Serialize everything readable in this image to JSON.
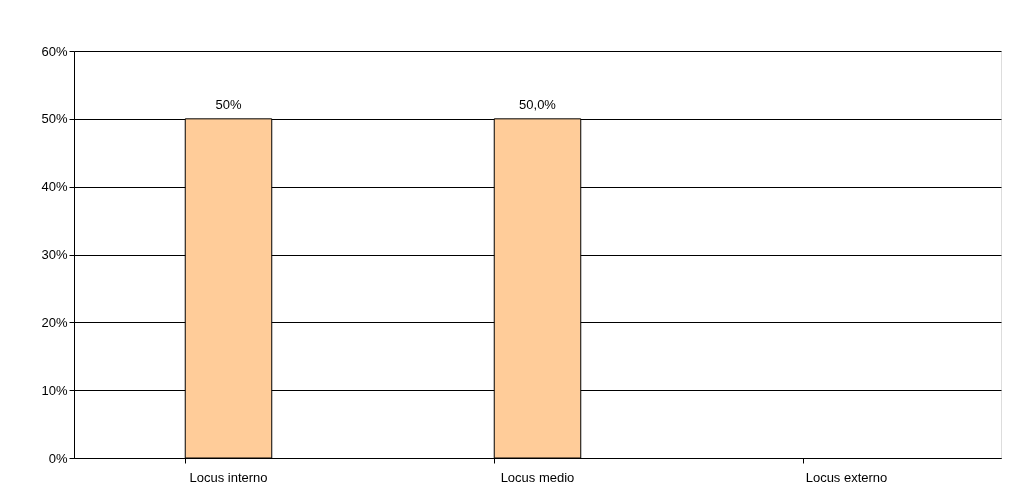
{
  "chart_data": {
    "type": "bar",
    "categories": [
      "Locus interno",
      "Locus medio",
      "Locus externo"
    ],
    "values": [
      50,
      50,
      0
    ],
    "value_labels": [
      "50%",
      "50,0%",
      null
    ],
    "color": "#ffcc99",
    "ylim": [
      0,
      60
    ],
    "yticks": [
      {
        "value": 0,
        "label": "0%"
      },
      {
        "value": 10,
        "label": "10%"
      },
      {
        "value": 20,
        "label": "20%"
      },
      {
        "value": 30,
        "label": "30%"
      },
      {
        "value": 40,
        "label": "40%"
      },
      {
        "value": 50,
        "label": "50%"
      },
      {
        "value": 60,
        "label": "60%"
      }
    ],
    "grid": "y"
  }
}
